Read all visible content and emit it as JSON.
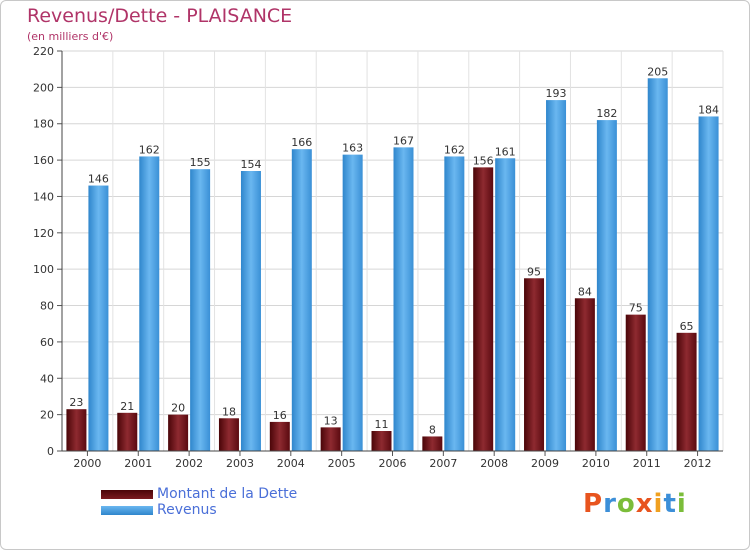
{
  "chart_data": {
    "type": "bar",
    "title": "Revenus/Dette - PLAISANCE",
    "subtitle": "(en milliers d'€)",
    "categories": [
      "2000",
      "2001",
      "2002",
      "2003",
      "2004",
      "2005",
      "2006",
      "2007",
      "2008",
      "2009",
      "2010",
      "2011",
      "2012"
    ],
    "series": [
      {
        "name": "Montant de la Dette",
        "values": [
          23,
          21,
          20,
          18,
          16,
          13,
          11,
          8,
          156,
          95,
          84,
          75,
          65
        ],
        "color": "#7a1a1f"
      },
      {
        "name": "Revenus",
        "values": [
          146,
          162,
          155,
          154,
          166,
          163,
          167,
          162,
          161,
          193,
          182,
          205,
          184
        ],
        "color": "#4aa3e6"
      }
    ],
    "ylim": [
      0,
      220
    ],
    "yticks": [
      0,
      20,
      40,
      60,
      80,
      100,
      120,
      140,
      160,
      180,
      200,
      220
    ],
    "grid": true,
    "legend_position": "bottom-left"
  },
  "logo": {
    "letters": [
      "P",
      "r",
      "o",
      "x",
      "i",
      "t",
      "i"
    ],
    "colors": [
      "#e8541e",
      "#3c8fd8",
      "#7bbd3a",
      "#e8541e",
      "#f0a020",
      "#3c8fd8",
      "#7bbd3a"
    ]
  }
}
